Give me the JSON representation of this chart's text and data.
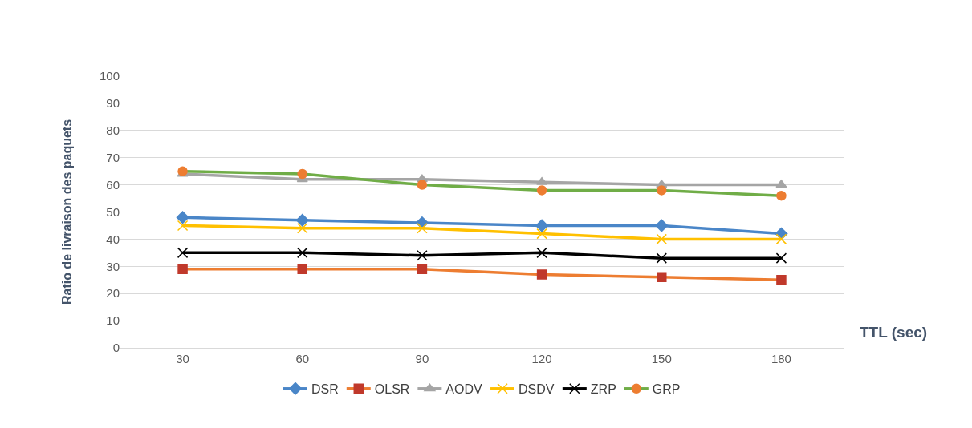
{
  "chart_data": {
    "type": "line",
    "xlabel": "TTL (sec)",
    "ylabel": "Ratio de livraison des paquets",
    "categories": [
      "30",
      "60",
      "90",
      "120",
      "150",
      "180"
    ],
    "series": [
      {
        "name": "DSR",
        "color": "#4a86c8",
        "marker": "diamond",
        "values": [
          48,
          47,
          46,
          45,
          45,
          42
        ]
      },
      {
        "name": "OLSR",
        "color": "#ed7d31",
        "marker": "square",
        "values": [
          29,
          29,
          29,
          27,
          26,
          25
        ]
      },
      {
        "name": "AODV",
        "color": "#a5a5a5",
        "marker": "triangle",
        "values": [
          64,
          62,
          62,
          61,
          60,
          60
        ]
      },
      {
        "name": "DSDV",
        "color": "#ffc000",
        "marker": "cross",
        "values": [
          45,
          44,
          44,
          42,
          40,
          40
        ]
      },
      {
        "name": "ZRP",
        "color": "#000000",
        "marker": "cross",
        "values": [
          35,
          35,
          34,
          35,
          33,
          33
        ]
      },
      {
        "name": "GRP",
        "color": "#70ad47",
        "marker": "circle",
        "values": [
          65,
          64,
          60,
          58,
          58,
          56
        ]
      }
    ],
    "ylim": [
      0,
      100
    ],
    "yticks": [
      0,
      10,
      20,
      30,
      40,
      50,
      60,
      70,
      80,
      90,
      100
    ],
    "grid": "y",
    "legend": "bottom"
  }
}
